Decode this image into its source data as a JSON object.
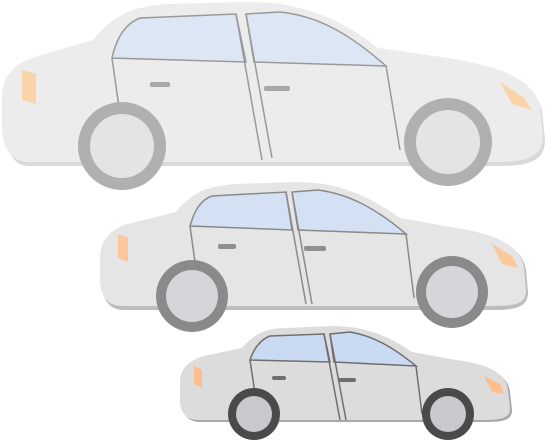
{
  "scene": {
    "background": "#ffffff",
    "cars": [
      {
        "name": "large-sedan",
        "body_color": "#ececec",
        "window_color": "#dde6f4",
        "light_color": "#fad3a8",
        "wheel_rim_color": "#e3e4e6",
        "tire_color": "#b0b0b0"
      },
      {
        "name": "medium-sedan",
        "body_color": "#e5e5e5",
        "window_color": "#d4e0f4",
        "light_color": "#fcc79a",
        "wheel_rim_color": "#d5d6d9",
        "tire_color": "#8a8a8a"
      },
      {
        "name": "small-sedan",
        "body_color": "#dcdcdc",
        "window_color": "#cbdaf3",
        "light_color": "#fdbd8c",
        "wheel_rim_color": "#c8c9cc",
        "tire_color": "#4a4a4a"
      }
    ]
  }
}
